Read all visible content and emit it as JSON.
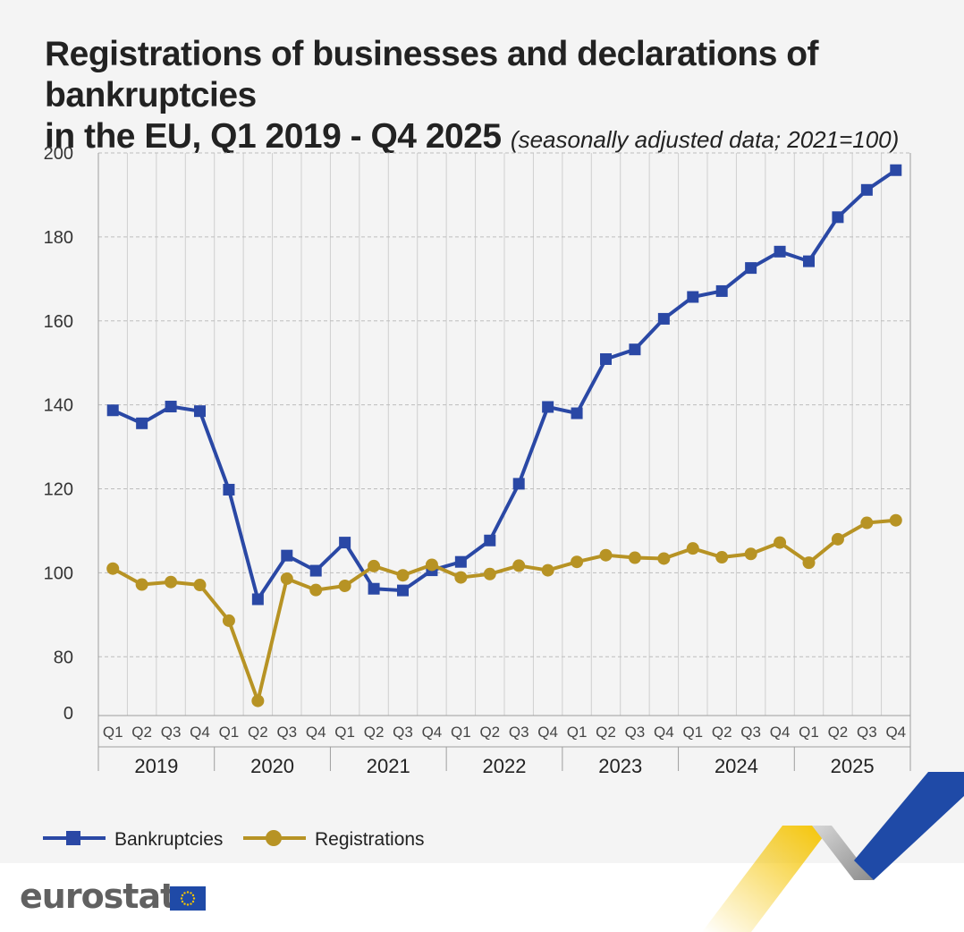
{
  "title": {
    "line1": "Registrations of businesses and declarations of bankruptcies",
    "line2": "in the EU, Q1 2019 - Q4 2025",
    "subtitle": "(seasonally adjusted data; 2021=100)"
  },
  "brand": {
    "name": "eurostat"
  },
  "colors": {
    "bankruptcies": "#2a48a5",
    "registrations": "#b79324",
    "gridline": "#bdbdbd",
    "background": "#f4f4f4",
    "deco_blue": "#1f4aa7",
    "deco_yellow": "#f5c400",
    "deco_grey": "#9a9a9a"
  },
  "chart_data": {
    "type": "line",
    "title": "Registrations of businesses and declarations of bankruptcies in the EU, Q1 2019 - Q4 2025",
    "subtitle": "(seasonally adjusted data; 2021=100)",
    "xlabel": "",
    "ylabel": "",
    "ylim": [
      66,
      200
    ],
    "yticks": [
      200,
      180,
      160,
      140,
      120,
      100,
      80
    ],
    "y_break_label": "0",
    "grid": true,
    "legend_position": "bottom-left",
    "quarters": [
      "Q1",
      "Q2",
      "Q3",
      "Q4",
      "Q1",
      "Q2",
      "Q3",
      "Q4",
      "Q1",
      "Q2",
      "Q3",
      "Q4",
      "Q1",
      "Q2",
      "Q3",
      "Q4",
      "Q1",
      "Q2",
      "Q3",
      "Q4",
      "Q1",
      "Q2",
      "Q3",
      "Q4",
      "Q1",
      "Q2",
      "Q3",
      "Q4"
    ],
    "years": [
      "2019",
      "2020",
      "2021",
      "2022",
      "2023",
      "2024",
      "2025"
    ],
    "series": [
      {
        "name": "Bankruptcies",
        "marker": "square",
        "values": [
          138.7,
          135.6,
          139.6,
          138.5,
          119.8,
          93.7,
          104.1,
          100.5,
          107.2,
          96.2,
          95.8,
          100.6,
          102.6,
          107.7,
          121.2,
          139.5,
          138.0,
          150.9,
          153.2,
          160.5,
          165.7,
          167.1,
          172.6,
          176.5,
          174.2,
          184.7,
          191.2,
          195.9
        ]
      },
      {
        "name": "Registrations",
        "marker": "circle",
        "values": [
          101.0,
          97.2,
          97.8,
          97.1,
          88.6,
          69.5,
          98.6,
          95.9,
          96.9,
          101.6,
          99.4,
          101.9,
          98.9,
          99.7,
          101.7,
          100.6,
          102.6,
          104.2,
          103.6,
          103.4,
          105.8,
          103.7,
          104.5,
          107.2,
          102.4,
          108.0,
          111.9,
          112.5
        ]
      }
    ]
  }
}
